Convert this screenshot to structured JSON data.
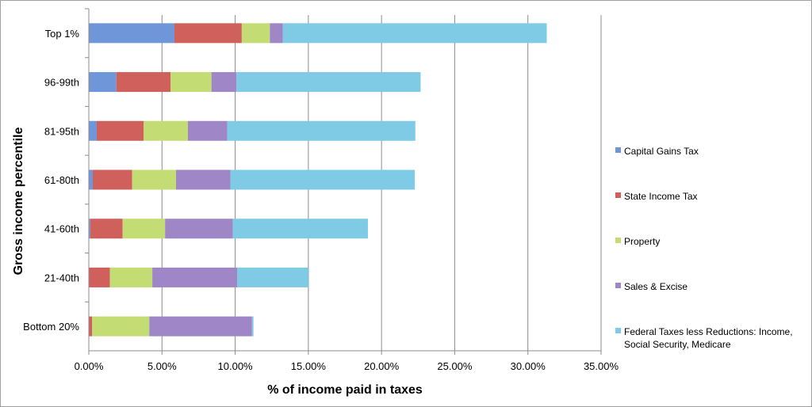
{
  "chart_data": {
    "type": "bar",
    "orientation": "horizontal",
    "stacked": true,
    "xlabel": "% of income paid in taxes",
    "ylabel": "Gross income percentile",
    "xlim": [
      0,
      35
    ],
    "xticks": [
      "0.00%",
      "5.00%",
      "10.00%",
      "15.00%",
      "20.00%",
      "25.00%",
      "30.00%",
      "35.00%"
    ],
    "grid": "vertical",
    "legend_position": "right",
    "categories": [
      "Top 1%",
      "96-99th",
      "81-95th",
      "61-80th",
      "41-60th",
      "21-40th",
      "Bottom 20%"
    ],
    "series": [
      {
        "name": "Capital Gains Tax",
        "color": "#6f96d8",
        "values": [
          5.85,
          1.88,
          0.54,
          0.27,
          0.1,
          0.0,
          0.0
        ]
      },
      {
        "name": "State Income Tax",
        "color": "#d0605c",
        "values": [
          4.6,
          3.71,
          3.21,
          2.69,
          2.21,
          1.44,
          0.23
        ]
      },
      {
        "name": "Property",
        "color": "#c3dc73",
        "values": [
          1.92,
          2.79,
          3.02,
          3.0,
          2.9,
          2.9,
          3.9
        ]
      },
      {
        "name": "Sales & Excise",
        "color": "#9f86c6",
        "values": [
          0.88,
          1.71,
          2.69,
          3.71,
          4.63,
          5.81,
          7.02
        ]
      },
      {
        "name": "Federal Taxes less Reductions: Income, Social Security, Medicare",
        "legend_lines": [
          "Federal Taxes less Reductions: Income,",
          "Social Security, Medicare"
        ],
        "color": "#7fcbe5",
        "values": [
          18.04,
          12.58,
          12.85,
          12.6,
          9.23,
          4.85,
          0.1
        ]
      }
    ]
  }
}
